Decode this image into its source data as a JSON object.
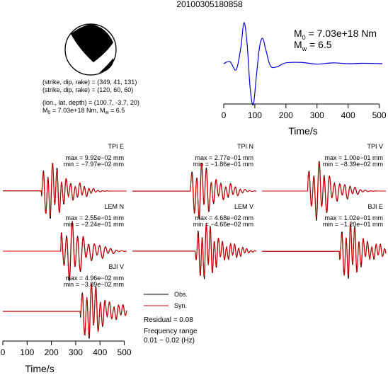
{
  "event_id": "20100305180858",
  "focal": {
    "line1": "(strike, dip, rake) = (349, 41, 131)",
    "line2": "(strike, dip, rake) = (120, 60, 60)",
    "line3": "(lon., lat, depth) = (100.7, -3.7, 20)",
    "line4_m0": "M",
    "line4_m0_sub": "0",
    "line4_m0_val": " = 7.03e+18 Nm, M",
    "line4_mw_sub": "w",
    "line4_mw_val": " = 6.5"
  },
  "stf_labels": {
    "m0_main": "M",
    "m0_sub": "0",
    "m0_val": " = 7.03e+18 Nm",
    "mw_main": "M",
    "mw_sub": "w",
    "mw_val": " = 6.5"
  },
  "legend": {
    "obs": "Obs.",
    "syn": "Syn.",
    "residual": "Residual = 0.08",
    "freq_title": "Frequency range",
    "freq_range": "0.01 − 0.02 (Hz)"
  },
  "colors": {
    "observed": "#000000",
    "synthetic": "#e00000",
    "stf": "#0000dd"
  },
  "chart_data": [
    {
      "type": "line",
      "name": "source-time-function",
      "xlabel": "Time/s",
      "xlim": [
        0,
        510
      ],
      "xticks": [
        0,
        100,
        200,
        300,
        400,
        500
      ],
      "x": [
        0,
        20,
        40,
        55,
        65,
        75,
        85,
        95,
        105,
        115,
        125,
        135,
        150,
        170,
        200,
        250,
        300,
        350,
        400,
        450,
        510
      ],
      "values": [
        0.0,
        0.05,
        -0.15,
        0.4,
        1.0,
        0.5,
        -0.6,
        -1.0,
        -0.3,
        0.4,
        0.62,
        0.35,
        -0.05,
        -0.08,
        0.02,
        0.03,
        -0.01,
        0.02,
        0.0,
        0.01,
        0.0
      ]
    },
    {
      "type": "line",
      "name": "waveforms",
      "xlabel": "Time/s",
      "xlim": [
        0,
        510
      ],
      "xticks": [
        0,
        100,
        200,
        300,
        400,
        500
      ],
      "panels": [
        {
          "station": "TPI E",
          "max": "max = 9.92e−02 mm",
          "min": "min = −7.97e−02 mm",
          "arrival": 200,
          "scale": 1.0,
          "seed": 1
        },
        {
          "station": "TPI N",
          "max": "max = 2.77e−01 mm",
          "min": "min = −1.86e−01 mm",
          "arrival": 280,
          "scale": 1.0,
          "seed": 2
        },
        {
          "station": "TPI V",
          "max": "max = 1.00e−01 mm",
          "min": "min = −8.39e−02 mm",
          "arrival": 230,
          "scale": 1.0,
          "seed": 3
        },
        {
          "station": "LEM N",
          "max": "max = 2.55e−01 mm",
          "min": "min = −2.24e−01 mm",
          "arrival": 280,
          "scale": 1.0,
          "seed": 4
        },
        {
          "station": "LEM V",
          "max": "max = 4.68e−02 mm",
          "min": "min = −4.66e−02 mm",
          "arrival": 300,
          "scale": 1.0,
          "seed": 5
        },
        {
          "station": "BJI E",
          "max": "max = 1.02e−01 mm",
          "min": "min = −1.20e−01 mm",
          "arrival": 360,
          "scale": 1.0,
          "seed": 6
        },
        {
          "station": "BJI V",
          "max": "max = 4.96e−02 mm",
          "min": "min = −3.89e−02 mm",
          "arrival": 360,
          "scale": 1.0,
          "seed": 7
        }
      ]
    }
  ]
}
